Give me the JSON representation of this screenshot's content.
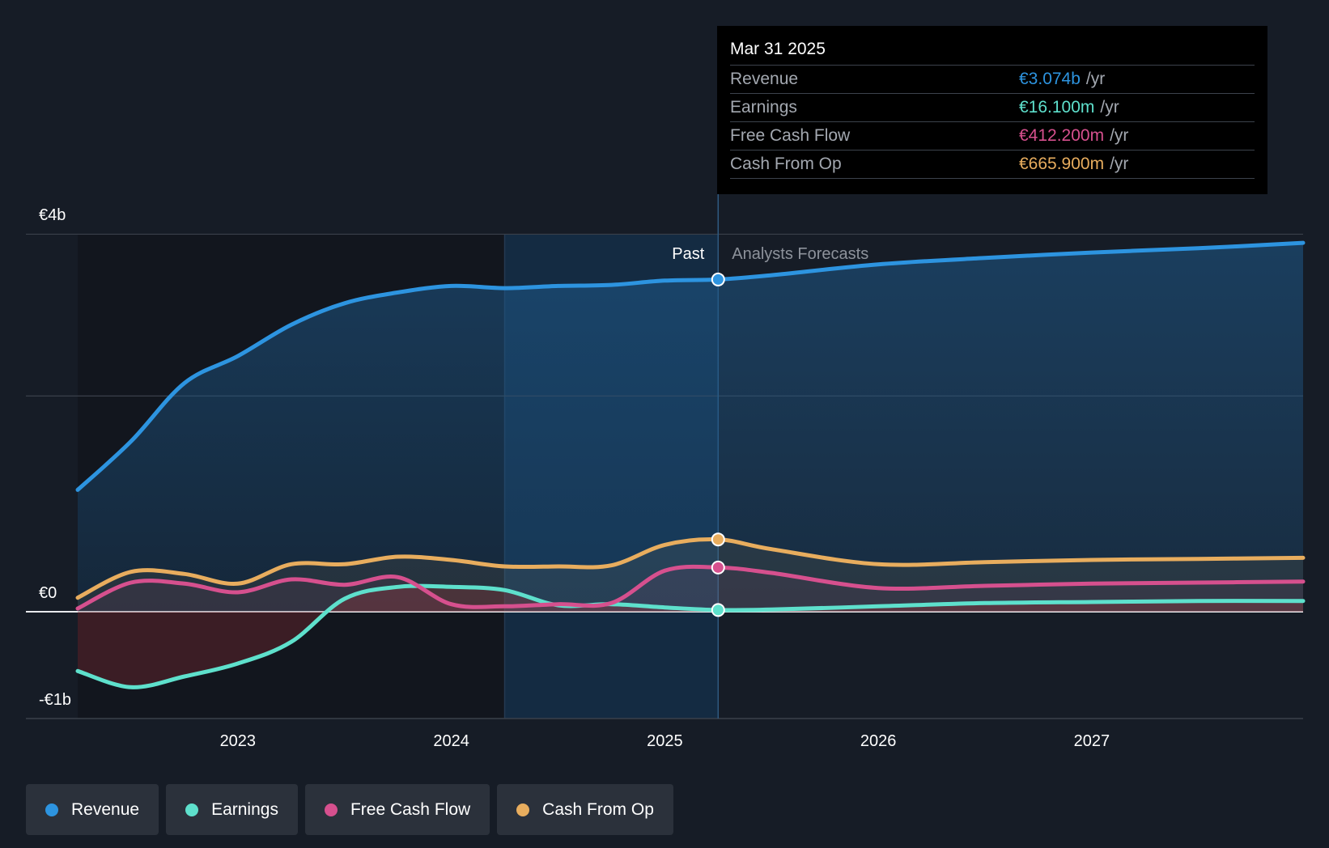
{
  "tooltip": {
    "date": "Mar 31 2025",
    "rows": [
      {
        "name": "Revenue",
        "value": "€3.074b",
        "unit": "/yr",
        "color": "#2d94e0"
      },
      {
        "name": "Earnings",
        "value": "€16.100m",
        "unit": "/yr",
        "color": "#5ee0cc"
      },
      {
        "name": "Free Cash Flow",
        "value": "€412.200m",
        "unit": "/yr",
        "color": "#d6508e"
      },
      {
        "name": "Cash From Op",
        "value": "€665.900m",
        "unit": "/yr",
        "color": "#e8ad5e"
      }
    ]
  },
  "legend": [
    {
      "label": "Revenue",
      "color": "#2d94e0"
    },
    {
      "label": "Earnings",
      "color": "#5ee0cc"
    },
    {
      "label": "Free Cash Flow",
      "color": "#d6508e"
    },
    {
      "label": "Cash From Op",
      "color": "#e8ad5e"
    }
  ],
  "chart_data": {
    "type": "line",
    "title": "",
    "xlabel": "",
    "ylabel": "",
    "xlim": [
      2022.25,
      2027.99
    ],
    "ylim": [
      -1.0,
      3.5
    ],
    "y_ticks": [
      {
        "value": 3.5,
        "label": "€4b"
      },
      {
        "value": 0,
        "label": "€0"
      },
      {
        "value": -1.0,
        "label": "-€1b"
      }
    ],
    "y_gridlines": [
      3.5,
      2.0,
      0
    ],
    "x_ticks": [
      {
        "value": 2023,
        "label": "2023"
      },
      {
        "value": 2024,
        "label": "2024"
      },
      {
        "value": 2025,
        "label": "2025"
      },
      {
        "value": 2026,
        "label": "2026"
      },
      {
        "value": 2027,
        "label": "2027"
      }
    ],
    "past_label": "Past",
    "forecast_label": "Analysts Forecasts",
    "highlight_start": 2024.25,
    "cursor_x": 2025.25,
    "grid": true,
    "legend_position": "bottom-left",
    "series": [
      {
        "name": "Revenue",
        "color": "#2d94e0",
        "points": [
          [
            2022.25,
            1.13
          ],
          [
            2022.5,
            1.58
          ],
          [
            2022.75,
            2.12
          ],
          [
            2023.0,
            2.37
          ],
          [
            2023.25,
            2.66
          ],
          [
            2023.5,
            2.86
          ],
          [
            2023.75,
            2.96
          ],
          [
            2024.0,
            3.02
          ],
          [
            2024.25,
            3.0
          ],
          [
            2024.5,
            3.02
          ],
          [
            2024.75,
            3.03
          ],
          [
            2025.0,
            3.07
          ],
          [
            2025.25,
            3.08
          ],
          [
            2025.5,
            3.12
          ],
          [
            2026.0,
            3.22
          ],
          [
            2026.5,
            3.28
          ],
          [
            2027.0,
            3.33
          ],
          [
            2027.5,
            3.37
          ],
          [
            2027.99,
            3.42
          ]
        ]
      },
      {
        "name": "Earnings",
        "color": "#5ee0cc",
        "points": [
          [
            2022.25,
            -0.55
          ],
          [
            2022.5,
            -0.7
          ],
          [
            2022.75,
            -0.6
          ],
          [
            2023.0,
            -0.48
          ],
          [
            2023.25,
            -0.28
          ],
          [
            2023.5,
            0.12
          ],
          [
            2023.75,
            0.23
          ],
          [
            2024.0,
            0.23
          ],
          [
            2024.25,
            0.2
          ],
          [
            2024.5,
            0.06
          ],
          [
            2024.75,
            0.07
          ],
          [
            2025.0,
            0.04
          ],
          [
            2025.25,
            0.016
          ],
          [
            2025.5,
            0.02
          ],
          [
            2026.0,
            0.05
          ],
          [
            2026.5,
            0.08
          ],
          [
            2027.0,
            0.09
          ],
          [
            2027.5,
            0.1
          ],
          [
            2027.99,
            0.1
          ]
        ]
      },
      {
        "name": "Free Cash Flow",
        "color": "#d6508e",
        "points": [
          [
            2022.25,
            0.03
          ],
          [
            2022.5,
            0.27
          ],
          [
            2022.75,
            0.26
          ],
          [
            2023.0,
            0.18
          ],
          [
            2023.25,
            0.3
          ],
          [
            2023.5,
            0.25
          ],
          [
            2023.75,
            0.32
          ],
          [
            2024.0,
            0.07
          ],
          [
            2024.25,
            0.05
          ],
          [
            2024.5,
            0.07
          ],
          [
            2024.75,
            0.08
          ],
          [
            2025.0,
            0.38
          ],
          [
            2025.25,
            0.41
          ],
          [
            2025.5,
            0.36
          ],
          [
            2026.0,
            0.22
          ],
          [
            2026.5,
            0.24
          ],
          [
            2027.0,
            0.26
          ],
          [
            2027.5,
            0.27
          ],
          [
            2027.99,
            0.28
          ]
        ]
      },
      {
        "name": "Cash From Op",
        "color": "#e8ad5e",
        "points": [
          [
            2022.25,
            0.13
          ],
          [
            2022.5,
            0.37
          ],
          [
            2022.75,
            0.35
          ],
          [
            2023.0,
            0.26
          ],
          [
            2023.25,
            0.44
          ],
          [
            2023.5,
            0.44
          ],
          [
            2023.75,
            0.51
          ],
          [
            2024.0,
            0.48
          ],
          [
            2024.25,
            0.42
          ],
          [
            2024.5,
            0.42
          ],
          [
            2024.75,
            0.43
          ],
          [
            2025.0,
            0.62
          ],
          [
            2025.25,
            0.67
          ],
          [
            2025.5,
            0.58
          ],
          [
            2026.0,
            0.44
          ],
          [
            2026.5,
            0.46
          ],
          [
            2027.0,
            0.48
          ],
          [
            2027.5,
            0.49
          ],
          [
            2027.99,
            0.5
          ]
        ]
      }
    ]
  }
}
